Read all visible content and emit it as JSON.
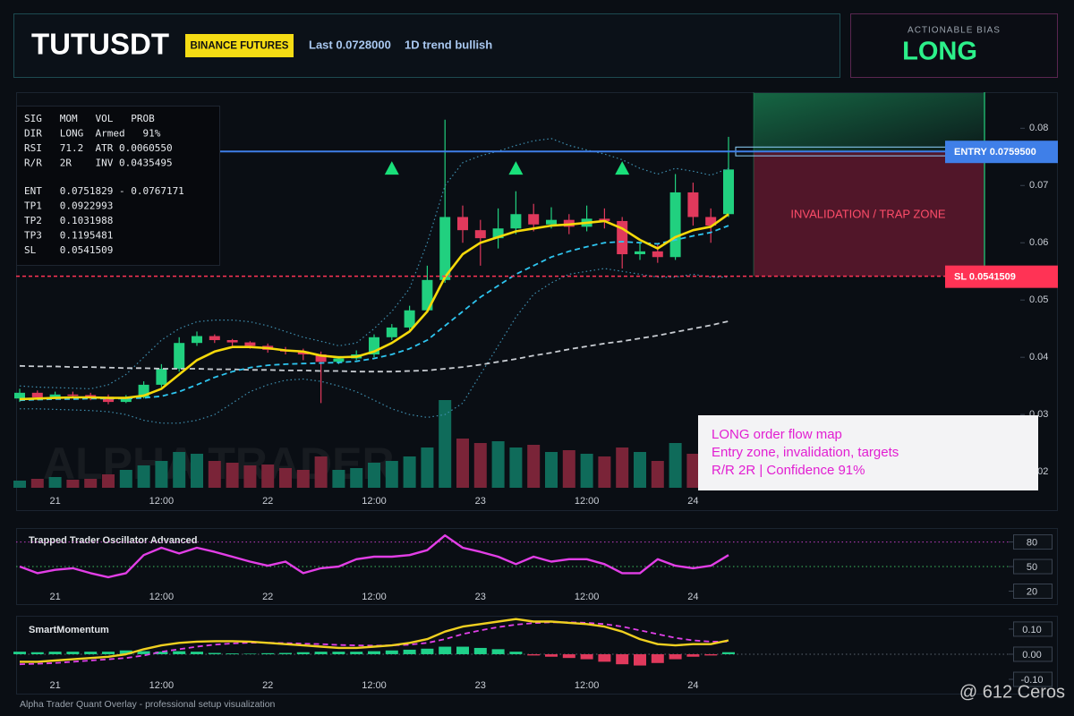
{
  "header": {
    "symbol": "TUTUSDT",
    "exchange": "BINANCE FUTURES",
    "last": "Last 0.0728000",
    "trend": "1D trend bullish"
  },
  "bias": {
    "title": "ACTIONABLE BIAS",
    "value": "LONG"
  },
  "info_panel": {
    "stats": [
      "SIG   MOM   VOL   PROB",
      "DIR   LONG  Armed   91%",
      "RSI   71.2  ATR 0.0060550",
      "R/R   2R    INV 0.0435495"
    ],
    "levels": [
      "ENT   0.0751829 - 0.0767171",
      "TP1   0.0922993",
      "TP2   0.1031988",
      "TP3   0.1195481",
      "SL    0.0541509"
    ]
  },
  "note": [
    "LONG order flow map",
    "Entry zone, invalidation, targets",
    "R/R 2R | Confidence 91%"
  ],
  "footer": {
    "caption": "Alpha Trader Quant Overlay - professional setup visualization",
    "watermark": "@ 612 Ceros"
  },
  "chart_data": [
    {
      "type": "candlestick",
      "watermark": "ALPHA TRADER",
      "categories": [
        null,
        null,
        "21",
        null,
        null,
        null,
        null,
        null,
        "12:00",
        null,
        null,
        null,
        null,
        null,
        "22",
        null,
        null,
        null,
        null,
        null,
        "12:00",
        null,
        null,
        null,
        null,
        null,
        "23",
        null,
        null,
        null,
        null,
        null,
        "12:00",
        null,
        null,
        null,
        null,
        null,
        "24",
        null,
        null
      ],
      "open": [
        0.0328,
        0.0338,
        0.033,
        0.0335,
        0.0334,
        0.0331,
        0.0322,
        0.033,
        0.0352,
        0.038,
        0.0425,
        0.0437,
        0.043,
        0.0426,
        0.042,
        0.0413,
        0.041,
        0.0405,
        0.0392,
        0.0398,
        0.0405,
        0.0435,
        0.0452,
        0.0482,
        0.0535,
        0.0645,
        0.0622,
        0.0608,
        0.0625,
        0.065,
        0.0632,
        0.064,
        0.0628,
        0.0642,
        0.0638,
        0.058,
        0.0585,
        0.0575,
        0.0688,
        0.0645,
        0.065
      ],
      "high": [
        0.0345,
        0.0342,
        0.034,
        0.034,
        0.0338,
        0.0335,
        0.0334,
        0.0358,
        0.0388,
        0.0435,
        0.0445,
        0.044,
        0.0432,
        0.0428,
        0.0424,
        0.0418,
        0.0415,
        0.041,
        0.0402,
        0.0412,
        0.044,
        0.0458,
        0.049,
        0.056,
        0.0815,
        0.0665,
        0.064,
        0.066,
        0.069,
        0.0668,
        0.0662,
        0.065,
        0.0665,
        0.066,
        0.0645,
        0.06,
        0.0598,
        0.072,
        0.0705,
        0.066,
        0.0785
      ],
      "low": [
        0.0322,
        0.0325,
        0.0327,
        0.0328,
        0.0325,
        0.0318,
        0.032,
        0.0328,
        0.0348,
        0.0375,
        0.042,
        0.0425,
        0.042,
        0.0415,
        0.0408,
        0.0405,
        0.0395,
        0.032,
        0.0388,
        0.0395,
        0.04,
        0.043,
        0.0448,
        0.0478,
        0.053,
        0.06,
        0.056,
        0.059,
        0.0615,
        0.062,
        0.0625,
        0.0615,
        0.062,
        0.0625,
        0.0555,
        0.057,
        0.0565,
        0.057,
        0.063,
        0.06,
        0.0645
      ],
      "close": [
        0.0338,
        0.033,
        0.0335,
        0.0334,
        0.0331,
        0.0322,
        0.033,
        0.0352,
        0.038,
        0.0425,
        0.0437,
        0.043,
        0.0426,
        0.042,
        0.0413,
        0.041,
        0.0405,
        0.0392,
        0.0398,
        0.0405,
        0.0435,
        0.0452,
        0.0482,
        0.0535,
        0.0645,
        0.0622,
        0.0608,
        0.0625,
        0.065,
        0.0632,
        0.064,
        0.0628,
        0.0642,
        0.0638,
        0.058,
        0.0585,
        0.0575,
        0.0688,
        0.0645,
        0.063,
        0.0728
      ],
      "up_color": "#21d07f",
      "down_color": "#e0395c",
      "volume": {
        "lim": [
          0,
          100
        ],
        "up_color": "#0f6b5a",
        "down_color": "#7a2438",
        "values": [
          8,
          10,
          12,
          9,
          10,
          15,
          20,
          25,
          30,
          40,
          38,
          30,
          28,
          25,
          26,
          22,
          20,
          35,
          20,
          22,
          28,
          30,
          35,
          45,
          98,
          55,
          50,
          52,
          45,
          48,
          40,
          42,
          38,
          35,
          45,
          40,
          30,
          50,
          38,
          35,
          40
        ]
      },
      "overlays": [
        {
          "color": "#3f8fb0",
          "style": "dotted",
          "values": [
            0.035,
            0.0348,
            0.0347,
            0.0346,
            0.0345,
            0.0352,
            0.037,
            0.04,
            0.043,
            0.045,
            0.0462,
            0.0465,
            0.0465,
            0.0462,
            0.0455,
            0.0445,
            0.0435,
            0.0428,
            0.042,
            0.0425,
            0.045,
            0.048,
            0.052,
            0.06,
            0.07,
            0.074,
            0.0752,
            0.076,
            0.077,
            0.0778,
            0.0782,
            0.077,
            0.0762,
            0.0755,
            0.0745,
            0.073,
            0.072,
            0.073,
            0.0725,
            0.0718,
            0.073
          ]
        },
        {
          "color": "#3f8fb0",
          "style": "dotted",
          "values": [
            0.031,
            0.031,
            0.0309,
            0.0308,
            0.0307,
            0.0305,
            0.03,
            0.029,
            0.0285,
            0.0285,
            0.029,
            0.03,
            0.032,
            0.034,
            0.0352,
            0.036,
            0.0362,
            0.0358,
            0.035,
            0.034,
            0.0325,
            0.031,
            0.03,
            0.0295,
            0.03,
            0.032,
            0.037,
            0.042,
            0.047,
            0.051,
            0.053,
            0.0545,
            0.055,
            0.0555,
            0.055,
            0.0545,
            0.054,
            0.054,
            0.0545,
            0.054,
            0.054
          ]
        },
        {
          "color": "#c8ccd2",
          "style": "dashed",
          "values": [
            0.0385,
            0.0384,
            0.0384,
            0.0383,
            0.0383,
            0.0382,
            0.0381,
            0.0381,
            0.038,
            0.038,
            0.038,
            0.0379,
            0.0379,
            0.0378,
            0.0378,
            0.0377,
            0.0377,
            0.0376,
            0.0376,
            0.0375,
            0.0375,
            0.0375,
            0.0376,
            0.0377,
            0.038,
            0.0383,
            0.0387,
            0.0392,
            0.0397,
            0.0403,
            0.0408,
            0.0414,
            0.0419,
            0.0424,
            0.0428,
            0.0433,
            0.0438,
            0.0444,
            0.045,
            0.0456,
            0.0463
          ]
        },
        {
          "color": "#2ec5f0",
          "style": "dashed",
          "values": [
            0.0325,
            0.0326,
            0.0327,
            0.0327,
            0.0328,
            0.0328,
            0.0328,
            0.0329,
            0.0332,
            0.034,
            0.0352,
            0.0365,
            0.0375,
            0.0382,
            0.0386,
            0.0388,
            0.0389,
            0.039,
            0.0391,
            0.0393,
            0.0398,
            0.0405,
            0.0415,
            0.043,
            0.0455,
            0.048,
            0.0505,
            0.0525,
            0.0545,
            0.056,
            0.0575,
            0.0585,
            0.0593,
            0.06,
            0.0602,
            0.06,
            0.0598,
            0.0605,
            0.0612,
            0.0618,
            0.063
          ]
        },
        {
          "color": "#f5d90a",
          "style": "solid",
          "values": [
            0.0327,
            0.0328,
            0.0329,
            0.033,
            0.033,
            0.0329,
            0.0329,
            0.0333,
            0.0345,
            0.037,
            0.0395,
            0.041,
            0.0418,
            0.0418,
            0.0416,
            0.0412,
            0.041,
            0.0403,
            0.04,
            0.0401,
            0.041,
            0.0425,
            0.0445,
            0.048,
            0.054,
            0.058,
            0.06,
            0.061,
            0.062,
            0.0625,
            0.063,
            0.0632,
            0.0635,
            0.0638,
            0.0625,
            0.0605,
            0.059,
            0.061,
            0.0622,
            0.0628,
            0.065
          ]
        }
      ],
      "signals": {
        "color": "#19e07a",
        "values": [
          null,
          null,
          null,
          null,
          null,
          null,
          null,
          null,
          null,
          null,
          null,
          null,
          null,
          null,
          null,
          null,
          null,
          null,
          null,
          null,
          null,
          0.073,
          null,
          null,
          null,
          null,
          null,
          null,
          0.073,
          null,
          null,
          null,
          null,
          null,
          0.073,
          null,
          null,
          null,
          null,
          null,
          null
        ]
      },
      "levels": [
        {
          "label": "ENTRY 0.0759500",
          "value": 0.07595,
          "color": "#3f7fe8",
          "style": "solid"
        },
        {
          "label": "SL 0.0541509",
          "value": 0.0541509,
          "color": "#ff3355",
          "style": "dashed"
        }
      ],
      "entry_zone": [
        0.0751829,
        0.0767171
      ],
      "zone_label": "INVALIDATION / TRAP ZONE",
      "zone_colors": {
        "target": "#1fae6a",
        "invalidation": "#8c1d3a",
        "label": "#ff4d6a"
      },
      "ylim": [
        0.0133,
        0.0863
      ],
      "yticks": [
        0.02,
        0.03,
        0.04,
        0.05,
        0.06,
        0.07,
        0.08
      ]
    },
    {
      "type": "line",
      "title": "Trapped Trader Oscillator Advanced",
      "series": [
        {
          "color": "#e23ee6",
          "style": "solid",
          "values": [
            50,
            42,
            46,
            48,
            42,
            37,
            42,
            64,
            73,
            66,
            73,
            68,
            62,
            56,
            51,
            56,
            42,
            48,
            50,
            59,
            62,
            62,
            64,
            70,
            88,
            73,
            68,
            62,
            53,
            62,
            56,
            59,
            59,
            53,
            42,
            42,
            59,
            51,
            48,
            51,
            64
          ]
        }
      ],
      "ylim": [
        14,
        97
      ],
      "yticks": [
        20,
        50,
        80
      ],
      "tick_line_colors": [
        null,
        "#3fbf5f",
        "#c03cc0"
      ]
    },
    {
      "type": "line",
      "title": "SmartMomentum",
      "series": [
        {
          "style": "histogram",
          "up_color": "#1fd18a",
          "down_color": "#e0395c",
          "values": [
            0.01,
            0.008,
            0.01,
            0.01,
            0.01,
            0.01,
            0.015,
            0.012,
            0.01,
            0.012,
            0.01,
            0.005,
            0.003,
            0.002,
            0.004,
            0.005,
            0.008,
            0.01,
            0.01,
            0.01,
            0.012,
            0.015,
            0.018,
            0.022,
            0.03,
            0.03,
            0.025,
            0.02,
            0.01,
            -0.005,
            -0.01,
            -0.015,
            -0.02,
            -0.03,
            -0.04,
            -0.045,
            -0.035,
            -0.02,
            -0.01,
            -0.005,
            0.008
          ]
        },
        {
          "color": "#e040e8",
          "style": "dashed",
          "values": [
            -0.04,
            -0.038,
            -0.035,
            -0.03,
            -0.025,
            -0.02,
            -0.015,
            -0.005,
            0.01,
            0.02,
            0.03,
            0.038,
            0.043,
            0.046,
            0.046,
            0.044,
            0.042,
            0.04,
            0.037,
            0.035,
            0.034,
            0.035,
            0.038,
            0.045,
            0.06,
            0.08,
            0.095,
            0.108,
            0.118,
            0.124,
            0.127,
            0.127,
            0.125,
            0.12,
            0.11,
            0.095,
            0.08,
            0.065,
            0.055,
            0.05,
            0.05
          ]
        },
        {
          "color": "#f0d020",
          "style": "solid",
          "values": [
            -0.03,
            -0.03,
            -0.025,
            -0.02,
            -0.015,
            -0.01,
            0,
            0.02,
            0.035,
            0.045,
            0.05,
            0.052,
            0.052,
            0.05,
            0.045,
            0.04,
            0.035,
            0.03,
            0.025,
            0.025,
            0.03,
            0.035,
            0.045,
            0.06,
            0.09,
            0.11,
            0.12,
            0.13,
            0.14,
            0.13,
            0.13,
            0.125,
            0.12,
            0.11,
            0.09,
            0.06,
            0.04,
            0.035,
            0.04,
            0.04,
            0.055
          ]
        }
      ],
      "ylim": [
        -0.132,
        0.146
      ],
      "yticks": [
        {
          "value": -0.1,
          "label": "-0.10"
        },
        {
          "value": 0,
          "label": "0.00"
        },
        {
          "value": 0.1,
          "label": "0.10"
        }
      ],
      "tick_line_colors": [
        null,
        "#5b6470",
        null
      ]
    }
  ]
}
